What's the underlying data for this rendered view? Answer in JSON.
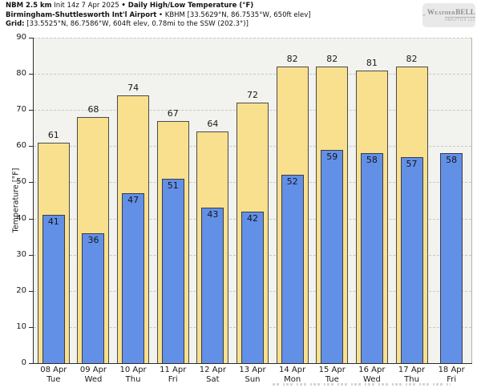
{
  "header": {
    "line1": {
      "model": "NBM 2.5 km",
      "init": "Init 14z 7 Apr 2025",
      "product": "• Daily High/Low Temperature (°F)"
    },
    "line2": {
      "station_name": "Birmingham-Shuttlesworth Int'l Airport",
      "station_info": "• KBHM [33.5629°N, 86.7535°W, 650ft elev]"
    },
    "line3": {
      "label": "Grid:",
      "value": "[33.5525°N, 86.7586°W, 604ft elev, 0.78mi to the SSW (202.3°)]"
    }
  },
  "logo": {
    "weather": "Weather",
    "bell": "BELL",
    "sub": "ANALYTICS LLC"
  },
  "chart_data": {
    "type": "bar",
    "title": "NBM 2.5 km Init 14z 7 Apr 2025 • Daily High/Low Temperature (°F)",
    "subtitle": "Birmingham-Shuttlesworth Int'l Airport • KBHM",
    "ylabel": "Temperature [°F]",
    "ylim": [
      0,
      90
    ],
    "yticks": [
      0,
      10,
      20,
      30,
      40,
      50,
      60,
      70,
      80,
      90
    ],
    "grid": "horizontal dashed",
    "legend": "none",
    "categories": [
      {
        "date": "08 Apr",
        "day": "Tue"
      },
      {
        "date": "09 Apr",
        "day": "Wed"
      },
      {
        "date": "10 Apr",
        "day": "Thu"
      },
      {
        "date": "11 Apr",
        "day": "Fri"
      },
      {
        "date": "12 Apr",
        "day": "Sat"
      },
      {
        "date": "13 Apr",
        "day": "Sun"
      },
      {
        "date": "14 Apr",
        "day": "Mon"
      },
      {
        "date": "15 Apr",
        "day": "Tue"
      },
      {
        "date": "16 Apr",
        "day": "Wed"
      },
      {
        "date": "17 Apr",
        "day": "Thu"
      },
      {
        "date": "18 Apr",
        "day": "Fri"
      }
    ],
    "series": [
      {
        "name": "Daily High",
        "color": "#f8e08e",
        "border": "#4a4a4a",
        "values": [
          61,
          68,
          74,
          67,
          64,
          72,
          82,
          82,
          81,
          82,
          null
        ]
      },
      {
        "name": "Daily Low",
        "color": "#6290e7",
        "border": "#3c3c46",
        "values": [
          41,
          36,
          47,
          51,
          43,
          42,
          52,
          59,
          58,
          57,
          58
        ]
      }
    ]
  }
}
